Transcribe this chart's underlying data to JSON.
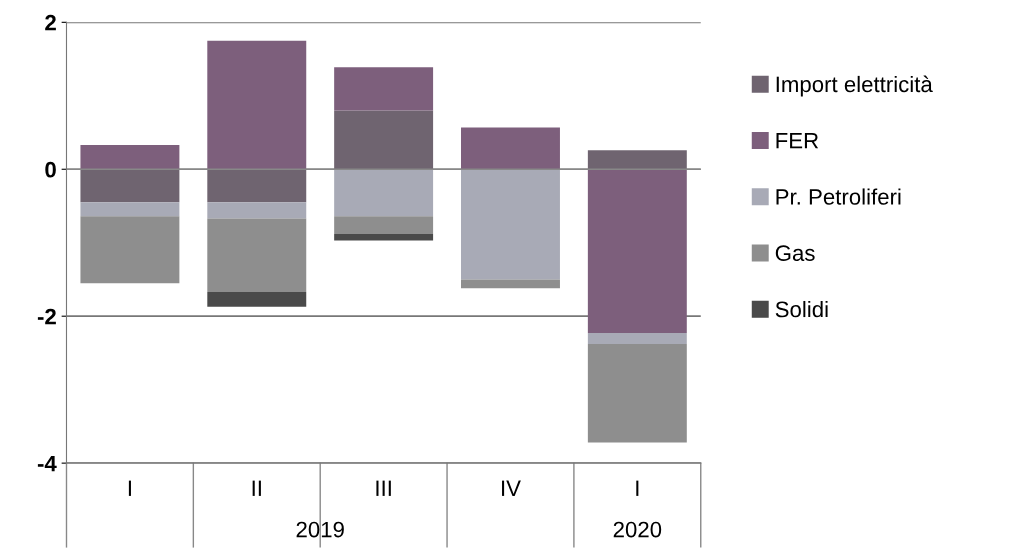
{
  "chart_data": {
    "type": "bar",
    "stacked": true,
    "categories": [
      "I",
      "II",
      "III",
      "IV",
      "I"
    ],
    "series": [
      {
        "name": "Import elettricità",
        "color": "#6f6470",
        "values": [
          -0.45,
          -0.45,
          0.8,
          0,
          0.26
        ]
      },
      {
        "name": "FER",
        "color": "#7d5f7c",
        "values": [
          0.33,
          1.75,
          0.59,
          0.57,
          -2.23
        ]
      },
      {
        "name": "Pr. Petroliferi",
        "color": "#a8aab6",
        "values": [
          -0.19,
          -0.22,
          -0.64,
          -1.5,
          -0.15
        ]
      },
      {
        "name": "Gas",
        "color": "#8e8e8e",
        "values": [
          -0.91,
          -1.0,
          -0.24,
          -0.12,
          -1.34
        ]
      },
      {
        "name": "Solidi",
        "color": "#4a4a4a",
        "values": [
          0,
          -0.2,
          -0.09,
          0,
          0
        ]
      }
    ],
    "annotations": [
      "2019",
      "2020"
    ],
    "ylim": [
      -4,
      2
    ],
    "yticks": [
      -4,
      -2,
      0,
      2
    ],
    "grid": "y",
    "legend": "right"
  }
}
